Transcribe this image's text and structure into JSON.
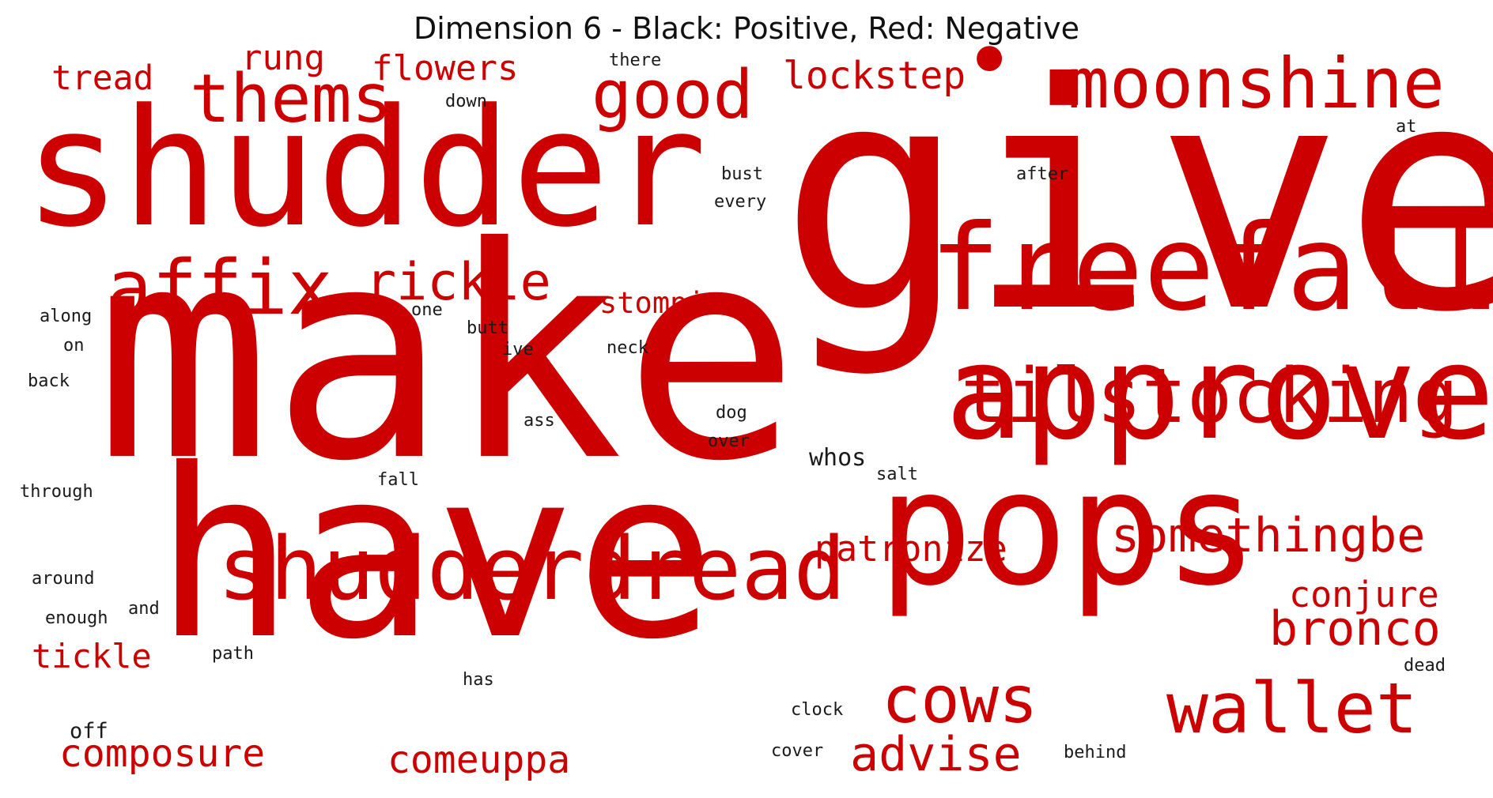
{
  "title": "Dimension 6 - Black: Positive, Red: Negative",
  "colors": {
    "positive": "#1a1a1a",
    "negative": "#cc0000"
  },
  "words": [
    {
      "text": "give",
      "sign": "negative"
    },
    {
      "text": "make",
      "sign": "negative"
    },
    {
      "text": "have",
      "sign": "negative"
    },
    {
      "text": "shudder",
      "sign": "negative"
    },
    {
      "text": "pops",
      "sign": "negative"
    },
    {
      "text": "approve",
      "sign": "negative"
    },
    {
      "text": "freefall",
      "sign": "negative"
    },
    {
      "text": "shudderdread",
      "sign": "negative"
    },
    {
      "text": "tilstocking",
      "sign": "negative"
    },
    {
      "text": "moonshine",
      "sign": "negative"
    },
    {
      "text": "wallet",
      "sign": "negative"
    },
    {
      "text": "affix",
      "sign": "negative"
    },
    {
      "text": "thems",
      "sign": "negative"
    },
    {
      "text": "good",
      "sign": "negative"
    },
    {
      "text": "cows",
      "sign": "negative"
    },
    {
      "text": "rickle",
      "sign": "negative"
    },
    {
      "text": "bronco",
      "sign": "negative"
    },
    {
      "text": "somethingbe",
      "sign": "negative"
    },
    {
      "text": "advise",
      "sign": "negative"
    },
    {
      "text": "lockstep",
      "sign": "negative"
    },
    {
      "text": "patronize",
      "sign": "negative"
    },
    {
      "text": "composure",
      "sign": "negative"
    },
    {
      "text": "comeuppa",
      "sign": "negative"
    },
    {
      "text": "conjure",
      "sign": "negative"
    },
    {
      "text": "flowers",
      "sign": "negative"
    },
    {
      "text": "tread",
      "sign": "negative"
    },
    {
      "text": "rung",
      "sign": "negative"
    },
    {
      "text": "tickle",
      "sign": "negative"
    },
    {
      "text": "stompies",
      "sign": "negative"
    },
    {
      "text": "•",
      "sign": "negative"
    },
    {
      "text": "whos",
      "sign": "positive"
    },
    {
      "text": "off",
      "sign": "positive"
    },
    {
      "text": "there",
      "sign": "positive"
    },
    {
      "text": "down",
      "sign": "positive"
    },
    {
      "text": "at",
      "sign": "positive"
    },
    {
      "text": "after",
      "sign": "positive"
    },
    {
      "text": "bust",
      "sign": "positive"
    },
    {
      "text": "every",
      "sign": "positive"
    },
    {
      "text": "along",
      "sign": "positive"
    },
    {
      "text": "on",
      "sign": "positive"
    },
    {
      "text": "back",
      "sign": "positive"
    },
    {
      "text": "one",
      "sign": "positive"
    },
    {
      "text": "butt",
      "sign": "positive"
    },
    {
      "text": "ive",
      "sign": "positive"
    },
    {
      "text": "neck",
      "sign": "positive"
    },
    {
      "text": "ass",
      "sign": "positive"
    },
    {
      "text": "dog",
      "sign": "positive"
    },
    {
      "text": "over",
      "sign": "positive"
    },
    {
      "text": "through",
      "sign": "positive"
    },
    {
      "text": "fall",
      "sign": "positive"
    },
    {
      "text": "salt",
      "sign": "positive"
    },
    {
      "text": "around",
      "sign": "positive"
    },
    {
      "text": "and",
      "sign": "positive"
    },
    {
      "text": "enough",
      "sign": "positive"
    },
    {
      "text": "path",
      "sign": "positive"
    },
    {
      "text": "has",
      "sign": "positive"
    },
    {
      "text": "dead",
      "sign": "positive"
    },
    {
      "text": "clock",
      "sign": "positive"
    },
    {
      "text": "cover",
      "sign": "positive"
    },
    {
      "text": "behind",
      "sign": "positive"
    }
  ]
}
